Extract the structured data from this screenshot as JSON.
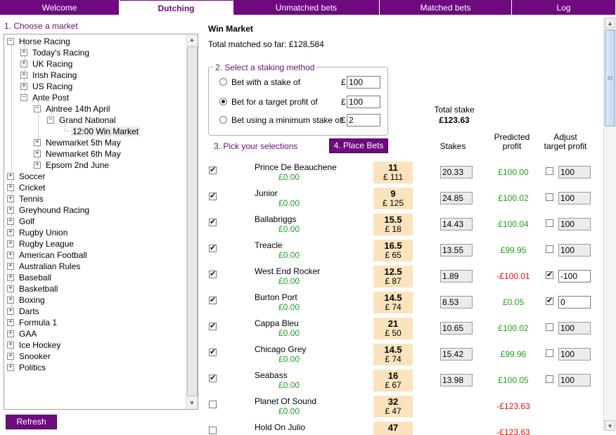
{
  "tabs": [
    {
      "label": "Welcome"
    },
    {
      "label": "Dutching"
    },
    {
      "label": "Unmatched bets"
    },
    {
      "label": "Matched bets"
    },
    {
      "label": "Log"
    }
  ],
  "left": {
    "choose_market": "1. Choose a market",
    "refresh_label": "Refresh",
    "tree": {
      "horse_racing": "Horse Racing",
      "todays_racing": "Today's Racing",
      "uk_racing": "UK Racing",
      "irish_racing": "Irish Racing",
      "us_racing": "US Racing",
      "ante_post": "Ante Post",
      "aintree": "Aintree 14th April",
      "grand_national": "Grand National",
      "win_market": "12:00 Win Market",
      "newmarket5": "Newmarket 5th May",
      "newmarket6": "Newmarket 6th May",
      "epsom": "Epsom 2nd June",
      "sports": [
        "Soccer",
        "Cricket",
        "Tennis",
        "Greyhound Racing",
        "Golf",
        "Rugby Union",
        "Rugby League",
        "American Football",
        "Australian Rules",
        "Baseball",
        "Basketball",
        "Boxing",
        "Darts",
        "Formula 1",
        "GAA",
        "Ice Hockey",
        "Snooker",
        "Politics"
      ]
    }
  },
  "main": {
    "market_title": "Win Market",
    "total_matched": "Total matched so far: £128,584",
    "staking_legend": "2. Select a staking method",
    "staking": [
      {
        "label": "Bet with a stake of",
        "currency": "£",
        "value": "100",
        "selected": false
      },
      {
        "label": "Bet for a target profit of",
        "currency": "£",
        "value": "100",
        "selected": true
      },
      {
        "label": "Bet using a minimum stake of",
        "currency": "£",
        "value": "2",
        "selected": false
      }
    ],
    "total_stake_label": "Total stake",
    "total_stake_value": "£123.63",
    "pick_label": "3. Pick your selections",
    "place_bets_label": "4. Place Bets",
    "headers": {
      "stakes": "Stakes",
      "predicted_1": "Predicted",
      "predicted_2": "profit",
      "adjust_1": "Adjust",
      "adjust_2": "target profit"
    },
    "selections": [
      {
        "name": "Prince De Beauchene",
        "amount": "£0.00",
        "odds": "11",
        "matched": "£ 111",
        "checked": true,
        "stake": "20.33",
        "profit": "£100.00",
        "profit_color": "green",
        "adjust": false,
        "adjust_value": "100"
      },
      {
        "name": "Junior",
        "amount": "£0.00",
        "odds": "9",
        "matched": "£ 125",
        "checked": true,
        "stake": "24.85",
        "profit": "£100.02",
        "profit_color": "green",
        "adjust": false,
        "adjust_value": "100"
      },
      {
        "name": "Ballabriggs",
        "amount": "£0.00",
        "odds": "15.5",
        "matched": "£ 18",
        "checked": true,
        "stake": "14.43",
        "profit": "£100.04",
        "profit_color": "green",
        "adjust": false,
        "adjust_value": "100"
      },
      {
        "name": "Treacle",
        "amount": "£0.00",
        "odds": "16.5",
        "matched": "£ 65",
        "checked": true,
        "stake": "13.55",
        "profit": "£99.95",
        "profit_color": "green",
        "adjust": false,
        "adjust_value": "100"
      },
      {
        "name": "West End Rocker",
        "amount": "£0.00",
        "odds": "12.5",
        "matched": "£ 87",
        "checked": true,
        "stake": "1.89",
        "profit": "-£100.01",
        "profit_color": "red",
        "adjust": true,
        "adjust_value": "-100"
      },
      {
        "name": "Burton Port",
        "amount": "£0.00",
        "odds": "14.5",
        "matched": "£ 74",
        "checked": true,
        "stake": "8.53",
        "profit": "£0.05",
        "profit_color": "green",
        "adjust": true,
        "adjust_value": "0"
      },
      {
        "name": "Cappa Bleu",
        "amount": "£0.00",
        "odds": "21",
        "matched": "£ 50",
        "checked": true,
        "stake": "10.65",
        "profit": "£100.02",
        "profit_color": "green",
        "adjust": false,
        "adjust_value": "100"
      },
      {
        "name": "Chicago Grey",
        "amount": "£0.00",
        "odds": "14.5",
        "matched": "£ 74",
        "checked": true,
        "stake": "15.42",
        "profit": "£99.96",
        "profit_color": "green",
        "adjust": false,
        "adjust_value": "100"
      },
      {
        "name": "Seabass",
        "amount": "£0.00",
        "odds": "16",
        "matched": "£ 67",
        "checked": true,
        "stake": "13.98",
        "profit": "£100.05",
        "profit_color": "green",
        "adjust": false,
        "adjust_value": "100"
      },
      {
        "name": "Planet Of Sound",
        "amount": "£0.00",
        "odds": "32",
        "matched": "£ 47",
        "checked": false,
        "stake": "",
        "profit": "-£123.63",
        "profit_color": "red",
        "adjust": false,
        "adjust_value": ""
      },
      {
        "name": "Hold On Julio",
        "amount": "",
        "odds": "47",
        "matched": "",
        "checked": false,
        "stake": "",
        "profit": "-£123.63",
        "profit_color": "red",
        "adjust": false,
        "adjust_value": ""
      }
    ]
  },
  "colors": {
    "brand": "#6e0a7e",
    "odds_bg": "#fbe3bd",
    "green": "#1aa01a",
    "red": "#e01010"
  }
}
